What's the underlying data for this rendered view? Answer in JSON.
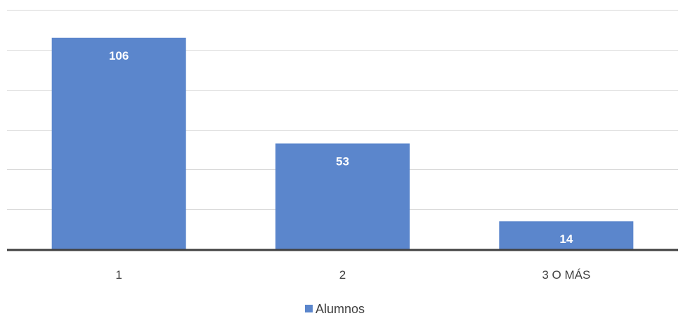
{
  "chart_data": {
    "type": "bar",
    "categories": [
      "1",
      "2",
      "3 O MÁS"
    ],
    "series": [
      {
        "name": "Alumnos",
        "values": [
          106,
          53,
          14
        ]
      }
    ],
    "ylim": [
      0,
      120
    ],
    "grid": true,
    "legend_position": "bottom",
    "colors": {
      "bar": "#5b86cc",
      "grid": "#d9d9d9",
      "axis": "#404040",
      "label": "#ffffff"
    }
  }
}
